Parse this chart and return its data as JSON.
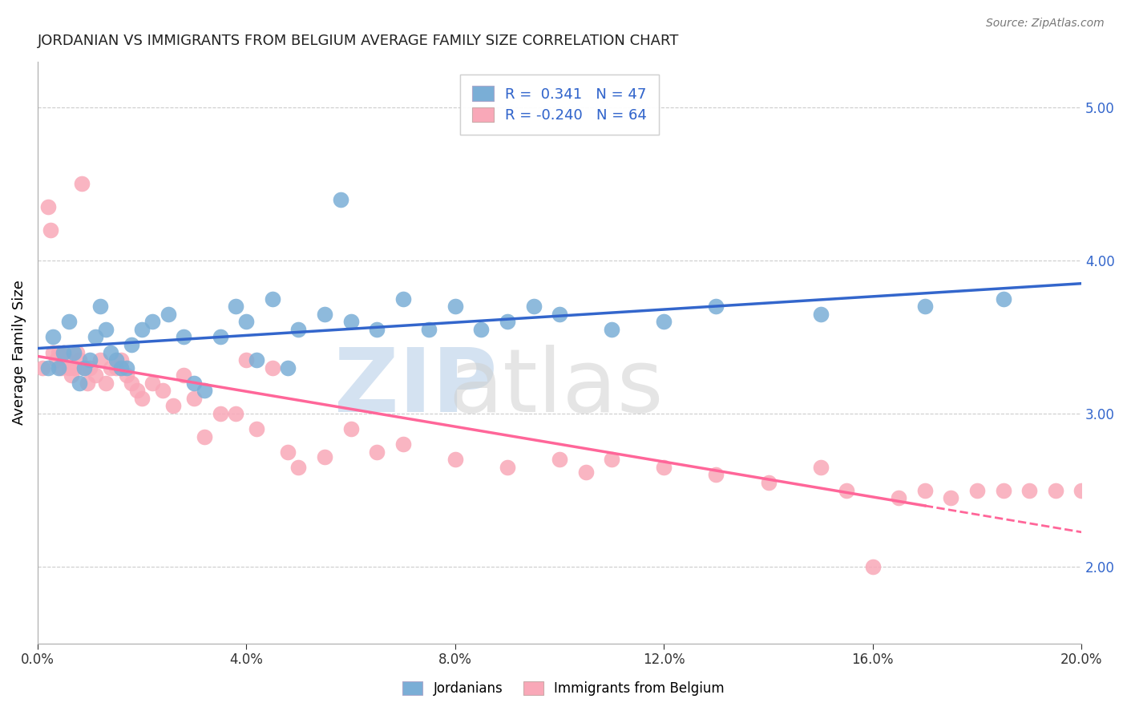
{
  "title": "JORDANIAN VS IMMIGRANTS FROM BELGIUM AVERAGE FAMILY SIZE CORRELATION CHART",
  "source": "Source: ZipAtlas.com",
  "ylabel": "Average Family Size",
  "right_yticks": [
    2.0,
    3.0,
    4.0,
    5.0
  ],
  "xmin": 0.0,
  "xmax": 20.0,
  "ymin": 1.5,
  "ymax": 5.3,
  "jordanians_R": 0.341,
  "jordanians_N": 47,
  "belgium_R": -0.24,
  "belgium_N": 64,
  "blue_color": "#7aaed6",
  "pink_color": "#f9a8b8",
  "blue_line_color": "#3366CC",
  "pink_line_color": "#FF6699",
  "jordanians_x": [
    0.2,
    0.3,
    0.4,
    0.5,
    0.6,
    0.7,
    0.8,
    0.9,
    1.0,
    1.1,
    1.2,
    1.3,
    1.4,
    1.5,
    1.6,
    1.7,
    1.8,
    2.0,
    2.2,
    2.5,
    2.8,
    3.0,
    3.2,
    3.5,
    3.8,
    4.0,
    4.2,
    4.5,
    4.8,
    5.0,
    5.5,
    5.8,
    6.0,
    6.5,
    7.0,
    7.5,
    8.0,
    8.5,
    9.0,
    9.5,
    10.0,
    11.0,
    12.0,
    13.0,
    15.0,
    17.0,
    18.5
  ],
  "jordanians_y": [
    3.3,
    3.5,
    3.3,
    3.4,
    3.6,
    3.4,
    3.2,
    3.3,
    3.35,
    3.5,
    3.7,
    3.55,
    3.4,
    3.35,
    3.3,
    3.3,
    3.45,
    3.55,
    3.6,
    3.65,
    3.5,
    3.2,
    3.15,
    3.5,
    3.7,
    3.6,
    3.35,
    3.75,
    3.3,
    3.55,
    3.65,
    4.4,
    3.6,
    3.55,
    3.75,
    3.55,
    3.7,
    3.55,
    3.6,
    3.7,
    3.65,
    3.55,
    3.6,
    3.7,
    3.65,
    3.7,
    3.75
  ],
  "belgium_x": [
    0.1,
    0.2,
    0.25,
    0.3,
    0.35,
    0.4,
    0.45,
    0.5,
    0.55,
    0.6,
    0.65,
    0.7,
    0.75,
    0.8,
    0.85,
    0.9,
    0.95,
    1.0,
    1.1,
    1.2,
    1.3,
    1.4,
    1.5,
    1.6,
    1.7,
    1.8,
    1.9,
    2.0,
    2.2,
    2.4,
    2.6,
    2.8,
    3.0,
    3.2,
    3.5,
    3.8,
    4.0,
    4.2,
    4.5,
    4.8,
    5.0,
    5.5,
    6.0,
    6.5,
    7.0,
    8.0,
    9.0,
    10.0,
    10.5,
    11.0,
    12.0,
    13.0,
    14.0,
    15.0,
    15.5,
    16.0,
    16.5,
    17.0,
    17.5,
    18.0,
    18.5,
    19.0,
    19.5,
    20.0
  ],
  "belgium_y": [
    3.3,
    4.35,
    4.2,
    3.4,
    3.35,
    3.4,
    3.3,
    3.4,
    3.35,
    3.3,
    3.25,
    3.3,
    3.4,
    3.35,
    4.5,
    3.3,
    3.2,
    3.3,
    3.25,
    3.35,
    3.2,
    3.3,
    3.3,
    3.35,
    3.25,
    3.2,
    3.15,
    3.1,
    3.2,
    3.15,
    3.05,
    3.25,
    3.1,
    2.85,
    3.0,
    3.0,
    3.35,
    2.9,
    3.3,
    2.75,
    2.65,
    2.72,
    2.9,
    2.75,
    2.8,
    2.7,
    2.65,
    2.7,
    2.62,
    2.7,
    2.65,
    2.6,
    2.55,
    2.65,
    2.5,
    2.0,
    2.45,
    2.5,
    2.45,
    2.5,
    2.5,
    2.5,
    2.5,
    2.5
  ],
  "dashed_start_x": 17.0
}
